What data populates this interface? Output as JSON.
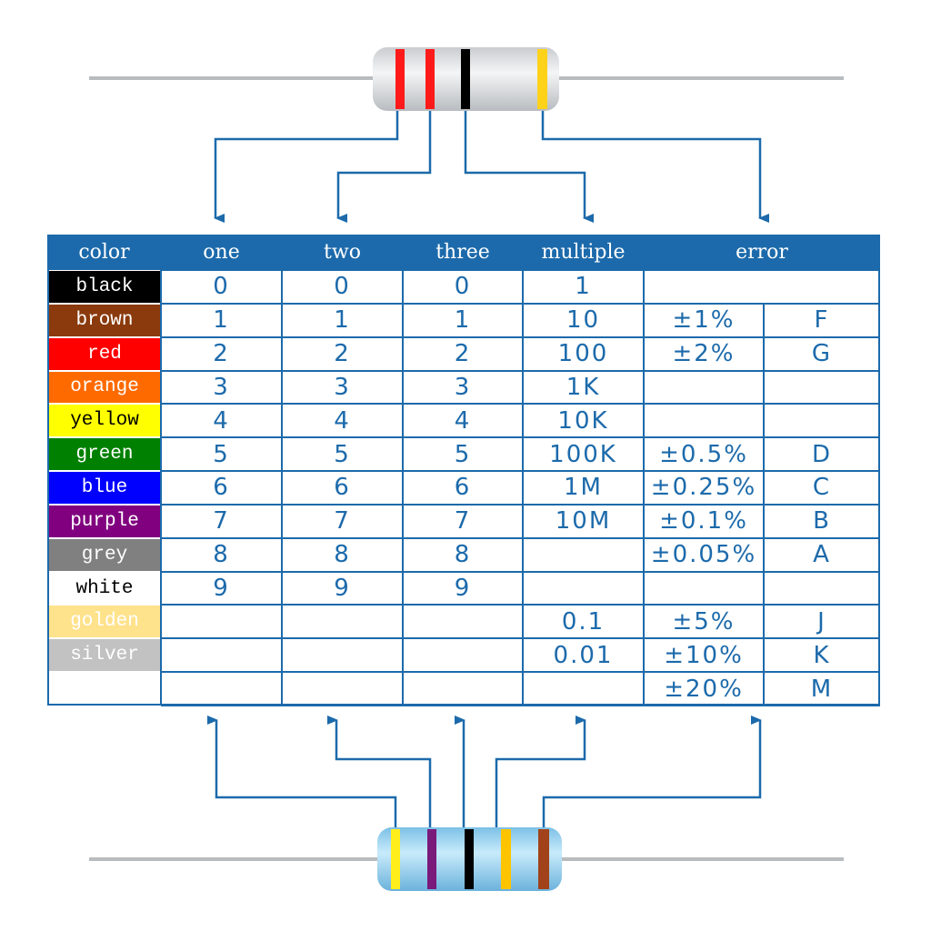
{
  "table": {
    "header": {
      "color": "color",
      "one": "one",
      "two": "two",
      "three": "three",
      "multiple": "multiple",
      "error": "error"
    },
    "rows": [
      {
        "color": "black",
        "fill": "#000000",
        "ink": "#ffffff",
        "one": "0",
        "two": "0",
        "three": "0",
        "multiple": "1"
      },
      {
        "color": "brown",
        "fill": "#8a3a0c",
        "ink": "#ffffff",
        "one": "1",
        "two": "1",
        "three": "1",
        "multiple": "10",
        "tolerance": "±1%",
        "code": "F"
      },
      {
        "color": "red",
        "fill": "#ff0000",
        "ink": "#ffffff",
        "one": "2",
        "two": "2",
        "three": "2",
        "multiple": "100",
        "tolerance": "±2%",
        "code": "G"
      },
      {
        "color": "orange",
        "fill": "#ff6a00",
        "ink": "#ffffff",
        "one": "3",
        "two": "3",
        "three": "3",
        "multiple": "1K"
      },
      {
        "color": "yellow",
        "fill": "#ffff00",
        "ink": "#000000",
        "one": "4",
        "two": "4",
        "three": "4",
        "multiple": "10K"
      },
      {
        "color": "green",
        "fill": "#008000",
        "ink": "#ffffff",
        "one": "5",
        "two": "5",
        "three": "5",
        "multiple": "100K",
        "tolerance": "±0.5%",
        "code": "D"
      },
      {
        "color": "blue",
        "fill": "#0000ff",
        "ink": "#ffffff",
        "one": "6",
        "two": "6",
        "three": "6",
        "multiple": "1M",
        "tolerance": "±0.25%",
        "code": "C"
      },
      {
        "color": "purple",
        "fill": "#80007f",
        "ink": "#ffffff",
        "one": "7",
        "two": "7",
        "three": "7",
        "multiple": "10M",
        "tolerance": "±0.1%",
        "code": "B"
      },
      {
        "color": "grey",
        "fill": "#808080",
        "ink": "#ffffff",
        "one": "8",
        "two": "8",
        "three": "8",
        "tolerance": "±0.05%",
        "code": "A"
      },
      {
        "color": "white",
        "fill": "#ffffff",
        "ink": "#000000",
        "one": "9",
        "two": "9",
        "three": "9"
      },
      {
        "color": "golden",
        "fill": "#ffe28c",
        "ink": "#ffffff",
        "multiple": "0.1",
        "tolerance": "±5%",
        "code": "J"
      },
      {
        "color": "silver",
        "fill": "#c2c2c2",
        "ink": "#ffffff",
        "multiple": "0.01",
        "tolerance": "±10%",
        "code": "K"
      },
      {
        "tolerance": "±20%",
        "code": "M"
      }
    ]
  }
}
